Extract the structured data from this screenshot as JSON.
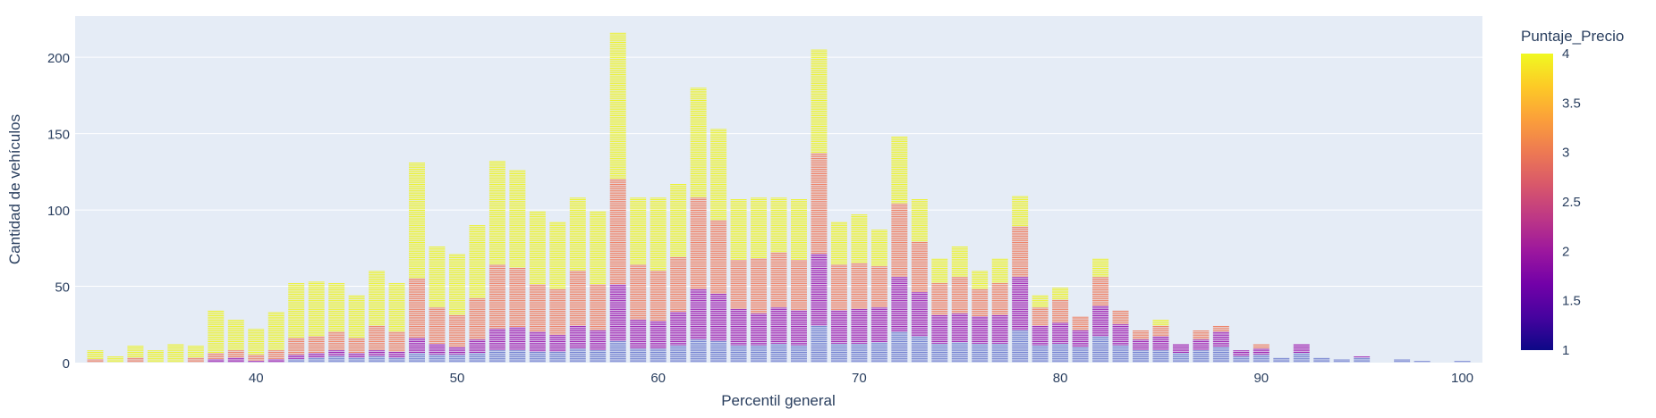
{
  "chart_data": {
    "type": "bar",
    "stacked": true,
    "xlabel": "Percentil general",
    "ylabel": "Cantidad de vehículos",
    "xlim": [
      31,
      101
    ],
    "ylim": [
      0,
      227
    ],
    "x_ticks": [
      40,
      50,
      60,
      70,
      80,
      90,
      100
    ],
    "y_ticks": [
      0,
      50,
      100,
      150,
      200
    ],
    "grid": true,
    "legend_position": "right",
    "colorbar": {
      "title": "Puntaje_Precio",
      "range": [
        1,
        4
      ],
      "ticks": [
        1,
        1.5,
        2,
        2.5,
        3,
        3.5,
        4
      ],
      "colors": [
        "#0d0887",
        "#46039f",
        "#7201a8",
        "#9c179e",
        "#bd3786",
        "#d8576b",
        "#ed7953",
        "#fb9f3a",
        "#fdca26",
        "#f0f921"
      ]
    },
    "series": [
      {
        "name": "Puntaje_Precio 1",
        "color": "#6c7acd"
      },
      {
        "name": "Puntaje_Precio 2",
        "color": "#9c19ae"
      },
      {
        "name": "Puntaje_Precio 3",
        "color": "#ee7b5d"
      },
      {
        "name": "Puntaje_Precio 4",
        "color": "#edf224"
      }
    ],
    "x": [
      32,
      33,
      34,
      35,
      36,
      37,
      38,
      39,
      40,
      41,
      42,
      43,
      44,
      45,
      46,
      47,
      48,
      49,
      50,
      51,
      52,
      53,
      54,
      55,
      56,
      57,
      58,
      59,
      60,
      61,
      62,
      63,
      64,
      65,
      66,
      67,
      68,
      69,
      70,
      71,
      72,
      73,
      74,
      75,
      76,
      77,
      78,
      79,
      80,
      81,
      82,
      83,
      84,
      85,
      86,
      87,
      88,
      89,
      90,
      91,
      92,
      93,
      94,
      95,
      97,
      98,
      100
    ],
    "values": [
      [
        0,
        0,
        0,
        2,
        8
      ],
      [
        0,
        0,
        0,
        0,
        4
      ],
      [
        0,
        0,
        0,
        3,
        11
      ],
      [
        0,
        0,
        0,
        0,
        8
      ],
      [
        0,
        0,
        0,
        0,
        12
      ],
      [
        0,
        0,
        0,
        3,
        11
      ],
      [
        0,
        0,
        2,
        6,
        34
      ],
      [
        0,
        0,
        3,
        8,
        28
      ],
      [
        0,
        0,
        1,
        5,
        22
      ],
      [
        0,
        0,
        2,
        8,
        33
      ],
      [
        0,
        2,
        5,
        16,
        52
      ],
      [
        0,
        3,
        6,
        17,
        53
      ],
      [
        0,
        4,
        8,
        20,
        52
      ],
      [
        0,
        3,
        6,
        16,
        44
      ],
      [
        0,
        4,
        8,
        24,
        60
      ],
      [
        0,
        3,
        7,
        20,
        52
      ],
      [
        0,
        6,
        16,
        55,
        131
      ],
      [
        0,
        5,
        12,
        36,
        76
      ],
      [
        0,
        5,
        10,
        31,
        71
      ],
      [
        0,
        6,
        15,
        42,
        90
      ],
      [
        0,
        8,
        22,
        64,
        132
      ],
      [
        0,
        8,
        23,
        62,
        126
      ],
      [
        0,
        7,
        20,
        51,
        99
      ],
      [
        0,
        7,
        18,
        48,
        92
      ],
      [
        0,
        9,
        24,
        60,
        108
      ],
      [
        0,
        8,
        21,
        51,
        99
      ],
      [
        0,
        14,
        51,
        120,
        216
      ],
      [
        0,
        9,
        28,
        64,
        108
      ],
      [
        0,
        9,
        27,
        60,
        108
      ],
      [
        0,
        11,
        33,
        69,
        117
      ],
      [
        0,
        15,
        48,
        108,
        180
      ],
      [
        0,
        14,
        45,
        93,
        153
      ],
      [
        0,
        11,
        35,
        67,
        107
      ],
      [
        0,
        11,
        32,
        68,
        108
      ],
      [
        0,
        12,
        36,
        72,
        108
      ],
      [
        0,
        11,
        34,
        67,
        107
      ],
      [
        0,
        24,
        71,
        137,
        205
      ],
      [
        0,
        12,
        34,
        64,
        92
      ],
      [
        0,
        12,
        35,
        65,
        97
      ],
      [
        0,
        13,
        36,
        63,
        87
      ],
      [
        0,
        20,
        56,
        104,
        148
      ],
      [
        0,
        17,
        46,
        79,
        107
      ],
      [
        0,
        12,
        31,
        52,
        68
      ],
      [
        0,
        13,
        32,
        56,
        76
      ],
      [
        0,
        12,
        30,
        48,
        60
      ],
      [
        0,
        12,
        31,
        52,
        68
      ],
      [
        0,
        21,
        56,
        89,
        109
      ],
      [
        0,
        11,
        24,
        36,
        44
      ],
      [
        0,
        12,
        26,
        41,
        49
      ],
      [
        0,
        10,
        21,
        30,
        30
      ],
      [
        0,
        17,
        37,
        56,
        68
      ],
      [
        0,
        11,
        25,
        34,
        34
      ],
      [
        0,
        8,
        15,
        21,
        21
      ],
      [
        0,
        8,
        17,
        24,
        28
      ],
      [
        0,
        6,
        12,
        12,
        12
      ],
      [
        0,
        8,
        15,
        21,
        21
      ],
      [
        0,
        10,
        20,
        24,
        24
      ],
      [
        0,
        4,
        8,
        8,
        8
      ],
      [
        0,
        5,
        9,
        12,
        12
      ],
      [
        0,
        3,
        3,
        3,
        3
      ],
      [
        0,
        6,
        12,
        12,
        12
      ],
      [
        0,
        3,
        3,
        3,
        3
      ],
      [
        0,
        2,
        2,
        2,
        2
      ],
      [
        0,
        3,
        4,
        4,
        4
      ],
      [
        0,
        2,
        2,
        2,
        2
      ],
      [
        0,
        1,
        1,
        1,
        1
      ],
      [
        0,
        1,
        1,
        1,
        1
      ]
    ]
  }
}
